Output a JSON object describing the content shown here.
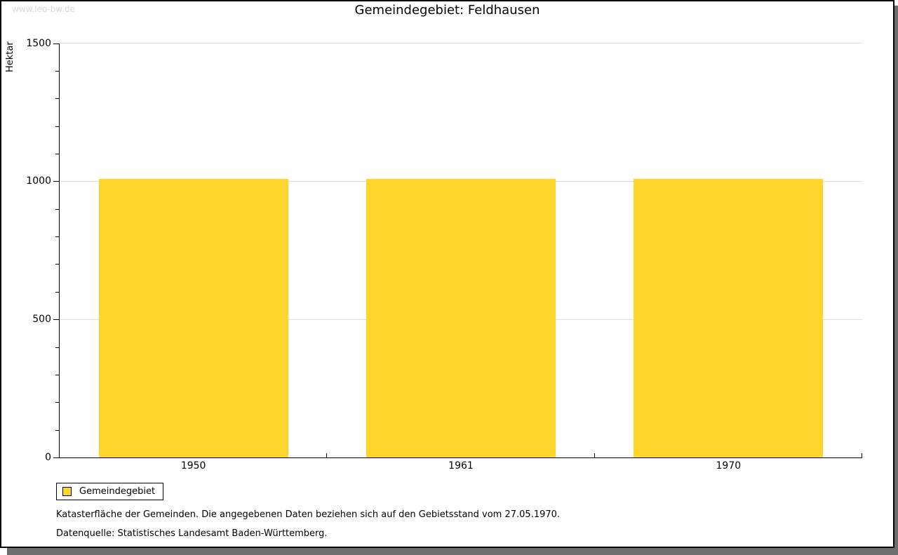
{
  "watermark": "www.leo-bw.de",
  "title": "Gemeindegebiet: Feldhausen",
  "chart_data": {
    "type": "bar",
    "title": "Gemeindegebiet: Feldhausen",
    "categories": [
      "1950",
      "1961",
      "1970"
    ],
    "series": [
      {
        "name": "Gemeindegebiet",
        "values": [
          1008,
          1008,
          1008
        ]
      }
    ],
    "xlabel": "",
    "ylabel": "Hektar",
    "ylim": [
      0,
      1500
    ],
    "yticks_major": [
      0,
      500,
      1000,
      1500
    ],
    "ytick_minor_step": 100,
    "grid": true,
    "gridline_color": "#dddddd",
    "bar_color": "#fdd52d",
    "legend_position": "bottom-left"
  },
  "legend": {
    "label": "Gemeindegebiet",
    "swatch_color": "#fdd52d"
  },
  "footnotes": [
    "Katasterfläche der Gemeinden. Die angegebenen Daten beziehen sich auf den Gebietsstand vom 27.05.1970.",
    "Datenquelle: Statistisches Landesamt Baden-Württemberg."
  ],
  "colors": {
    "bar": "#fdd52d",
    "grid": "#dddddd",
    "axis": "#000000",
    "watermark": "#d9d9d9",
    "shadow": "#6e6e6e",
    "background": "#ffffff"
  }
}
